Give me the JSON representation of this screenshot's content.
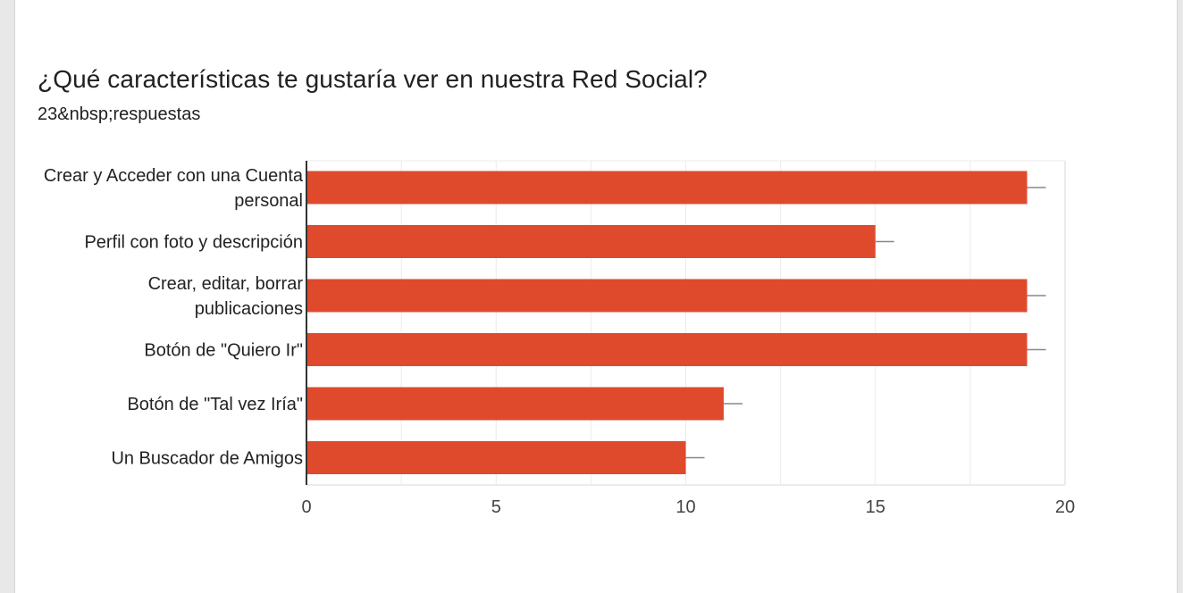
{
  "form": {
    "question": "¿Qué características te gustaría ver en nuestra Red Social?",
    "responses": "23&nbsp;respuestas"
  },
  "colors": {
    "bar": "#df4a2d",
    "axis": "#333333",
    "grid": "#ebebeb",
    "error_bar": "#888888"
  },
  "chart_data": {
    "type": "bar",
    "orientation": "horizontal",
    "categories": [
      [
        "Crear y Acceder con una Cuenta",
        "personal"
      ],
      [
        "Perfil con foto y descripción"
      ],
      [
        "Crear, editar, borrar",
        "publicaciones"
      ],
      [
        "Botón de \"Quiero Ir\""
      ],
      [
        "Botón de \"Tal vez Iría\""
      ],
      [
        "Un Buscador de Amigos"
      ]
    ],
    "values": [
      19,
      15,
      19,
      19,
      11,
      10
    ],
    "xlim": [
      0,
      20
    ],
    "xticks": [
      0,
      5,
      10,
      15,
      20
    ],
    "grid": true,
    "legend": "none"
  }
}
